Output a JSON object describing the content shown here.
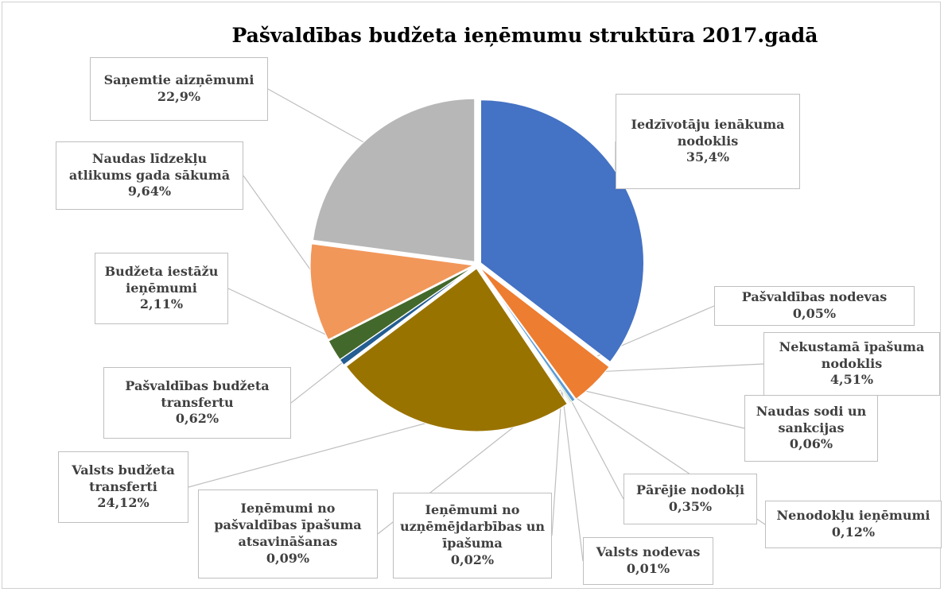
{
  "chart_data": {
    "type": "pie",
    "title": "Pašvaldības budžeta ieņēmumu struktūra 2017.gadā",
    "categories": [
      "Iedzīvotāju ienākuma nodoklis",
      "Pašvaldības nodevas",
      "Nekustamā īpašuma nodoklis",
      "Naudas sodi un sankcijas",
      "Pārējie nodokļi",
      "Nenodokļu ieņēmumi",
      "Valsts nodevas",
      "Ieņēmumi no uzņēmējdarbības un īpašuma",
      "Ieņēmumi no pašvaldības īpašuma atsavināšanas",
      "Valsts budžeta transferti",
      "Pašvaldības budžeta transfertu",
      "Budžeta iestāžu ieņēmumi",
      "Naudas līdzekļu atlikums gada sākumā",
      "Saņemtie aizņēmumi"
    ],
    "values": [
      35.4,
      0.05,
      4.51,
      0.06,
      0.35,
      0.12,
      0.01,
      0.02,
      0.09,
      24.12,
      0.62,
      2.11,
      9.64,
      22.9
    ],
    "value_labels": [
      "35,4%",
      "0,05%",
      "4,51%",
      "0,06%",
      "0,35%",
      "0,12%",
      "0,01%",
      "0,02%",
      "0,09%",
      "24,12%",
      "0,62%",
      "2,11%",
      "9,64%",
      "22,9%"
    ],
    "colors": [
      "#4472c4",
      "#a5a5a5",
      "#ed7d31",
      "#ffc000",
      "#5b9bd5",
      "#70ad47",
      "#264478",
      "#9e480e",
      "#636363",
      "#997300",
      "#255e91",
      "#43682b",
      "#f1975a",
      "#b7b7b7"
    ]
  }
}
